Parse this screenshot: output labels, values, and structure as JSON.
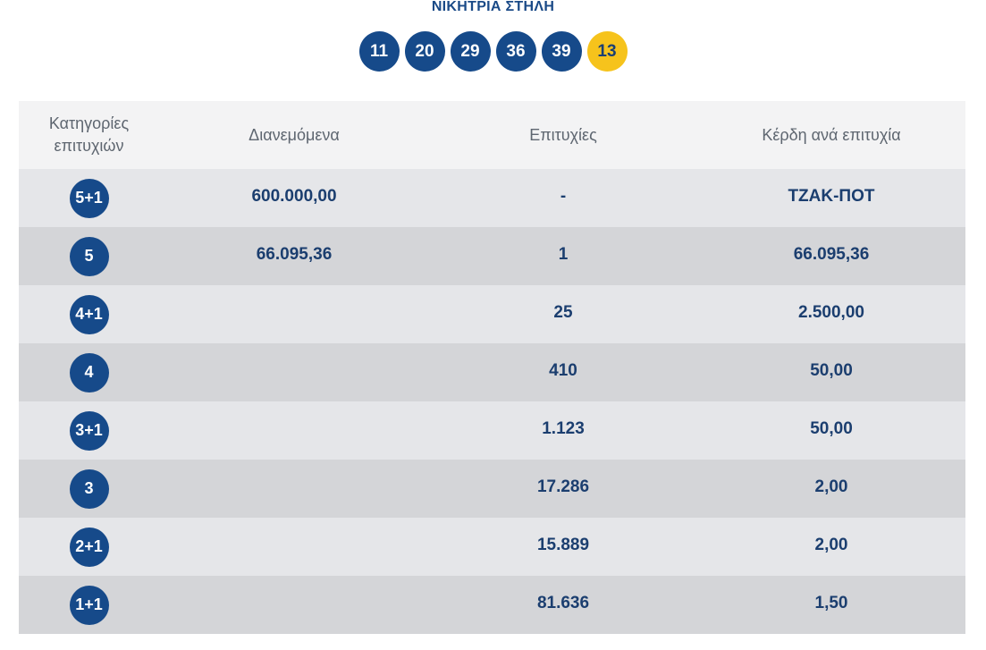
{
  "header": {
    "title": "ΝΙΚΗΤΡΙΑ ΣΤΗΛΗ"
  },
  "winning_numbers": {
    "numbers": [
      "11",
      "20",
      "29",
      "36",
      "39"
    ],
    "bonus": "13"
  },
  "table": {
    "headers": {
      "categories": "Κατηγορίες επιτυχιών",
      "distributed": "Διανεμόμενα",
      "winners": "Επιτυχίες",
      "prize_per_winner": "Κέρδη ανά επιτυχία"
    },
    "rows": [
      {
        "category": "5+1",
        "distributed": "600.000,00",
        "winners": "-",
        "prize": "ΤΖΑΚ-ΠΟΤ"
      },
      {
        "category": "5",
        "distributed": "66.095,36",
        "winners": "1",
        "prize": "66.095,36"
      },
      {
        "category": "4+1",
        "distributed": "",
        "winners": "25",
        "prize": "2.500,00"
      },
      {
        "category": "4",
        "distributed": "",
        "winners": "410",
        "prize": "50,00"
      },
      {
        "category": "3+1",
        "distributed": "",
        "winners": "1.123",
        "prize": "50,00"
      },
      {
        "category": "3",
        "distributed": "",
        "winners": "17.286",
        "prize": "2,00"
      },
      {
        "category": "2+1",
        "distributed": "",
        "winners": "15.889",
        "prize": "2,00"
      },
      {
        "category": "1+1",
        "distributed": "",
        "winners": "81.636",
        "prize": "1,50"
      }
    ]
  },
  "colors": {
    "ball_blue": "#164a8a",
    "ball_yellow": "#f6c31c",
    "text_blue": "#1b3e6f",
    "header_bg": "#f3f3f4",
    "row_light": "#e5e6e9",
    "row_dark": "#d4d5d8"
  }
}
